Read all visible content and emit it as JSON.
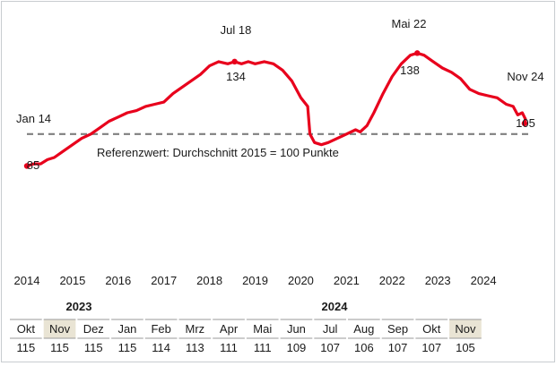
{
  "chart_data": {
    "type": "line",
    "title": "",
    "xlabel": "",
    "ylabel": "",
    "reference_note": "Referenzwert: Durchschnitt 2015 = 100 Punkte",
    "reference_value": 100,
    "x_ticks": [
      "2014",
      "2015",
      "2016",
      "2017",
      "2018",
      "2019",
      "2020",
      "2021",
      "2022",
      "2023",
      "2024"
    ],
    "xlim": [
      2014.0,
      2025.0
    ],
    "ylim": [
      60,
      160
    ],
    "grid": false,
    "series": [
      {
        "color": "#e8001c",
        "points": [
          [
            2014.0,
            85
          ],
          [
            2014.15,
            86
          ],
          [
            2014.3,
            86
          ],
          [
            2014.45,
            88
          ],
          [
            2014.6,
            89
          ],
          [
            2014.8,
            92
          ],
          [
            2015.0,
            95
          ],
          [
            2015.2,
            98
          ],
          [
            2015.4,
            100
          ],
          [
            2015.6,
            103
          ],
          [
            2015.8,
            106
          ],
          [
            2016.0,
            108
          ],
          [
            2016.2,
            110
          ],
          [
            2016.4,
            111
          ],
          [
            2016.6,
            113
          ],
          [
            2016.8,
            114
          ],
          [
            2017.0,
            115
          ],
          [
            2017.2,
            119
          ],
          [
            2017.4,
            122
          ],
          [
            2017.6,
            125
          ],
          [
            2017.8,
            128
          ],
          [
            2018.0,
            132
          ],
          [
            2018.2,
            134
          ],
          [
            2018.4,
            133
          ],
          [
            2018.55,
            134
          ],
          [
            2018.7,
            133
          ],
          [
            2018.85,
            134
          ],
          [
            2019.0,
            133
          ],
          [
            2019.2,
            134
          ],
          [
            2019.4,
            133
          ],
          [
            2019.6,
            130
          ],
          [
            2019.8,
            125
          ],
          [
            2020.0,
            117
          ],
          [
            2020.15,
            113
          ],
          [
            2020.2,
            100
          ],
          [
            2020.3,
            96
          ],
          [
            2020.45,
            95
          ],
          [
            2020.6,
            96
          ],
          [
            2020.8,
            98
          ],
          [
            2021.0,
            100
          ],
          [
            2021.2,
            102
          ],
          [
            2021.3,
            101
          ],
          [
            2021.45,
            104
          ],
          [
            2021.6,
            110
          ],
          [
            2021.8,
            119
          ],
          [
            2022.0,
            127
          ],
          [
            2022.2,
            133
          ],
          [
            2022.4,
            137
          ],
          [
            2022.55,
            138
          ],
          [
            2022.7,
            137
          ],
          [
            2022.9,
            134
          ],
          [
            2023.1,
            131
          ],
          [
            2023.3,
            129
          ],
          [
            2023.5,
            126
          ],
          [
            2023.7,
            121
          ],
          [
            2023.9,
            119
          ],
          [
            2024.1,
            118
          ],
          [
            2024.3,
            117
          ],
          [
            2024.5,
            114
          ],
          [
            2024.65,
            113
          ],
          [
            2024.75,
            109
          ],
          [
            2024.85,
            110
          ],
          [
            2024.92,
            107
          ],
          [
            2024.9,
            105
          ]
        ]
      }
    ],
    "annotations": [
      {
        "label": "Jan 14",
        "value": "85",
        "x": 2014.0,
        "y": 85
      },
      {
        "label": "Jul 18",
        "value": "134",
        "x": 2018.55,
        "y": 134
      },
      {
        "label": "Mai 22",
        "value": "138",
        "x": 2022.55,
        "y": 138
      },
      {
        "label": "Nov 24",
        "value": "105",
        "x": 2024.9,
        "y": 105
      }
    ]
  },
  "table": {
    "year_2023": "2023",
    "year_2024": "2024",
    "months": [
      "Okt",
      "Nov",
      "Dez",
      "Jan",
      "Feb",
      "Mrz",
      "Apr",
      "Mai",
      "Jun",
      "Jul",
      "Aug",
      "Sep",
      "Okt",
      "Nov"
    ],
    "values": [
      "115",
      "115",
      "115",
      "115",
      "114",
      "113",
      "111",
      "111",
      "109",
      "107",
      "106",
      "107",
      "107",
      "105"
    ],
    "highlighted": [
      1,
      13
    ],
    "highlight_color": "#e9e4d4"
  }
}
